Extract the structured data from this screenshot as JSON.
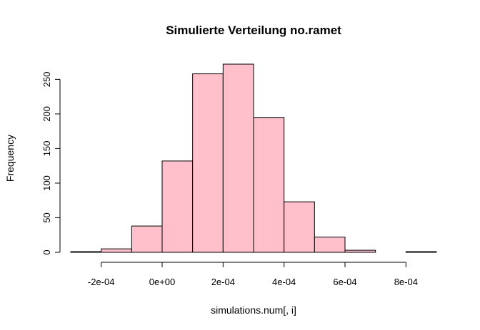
{
  "chart_data": {
    "type": "bar",
    "title": "Simulierte Verteilung no.ramet",
    "xlabel": "simulations.num[, i]",
    "ylabel": "Frequency",
    "bin_edges": [
      -0.0003,
      -0.0002,
      -0.0001,
      0,
      0.0001,
      0.0002,
      0.0003,
      0.0004,
      0.0005,
      0.0006,
      0.0007,
      0.0008,
      0.0009
    ],
    "values": [
      1,
      5,
      38,
      132,
      258,
      272,
      195,
      73,
      22,
      3,
      0,
      1
    ],
    "xlim": [
      -0.0003,
      0.0009
    ],
    "ylim": [
      0,
      272
    ],
    "x_ticks": [
      -0.0002,
      0,
      0.0002,
      0.0004,
      0.0006,
      0.0008
    ],
    "x_tick_labels": [
      "-2e-04",
      "0e+00",
      "2e-04",
      "4e-04",
      "6e-04",
      "8e-04"
    ],
    "y_ticks": [
      0,
      50,
      100,
      150,
      200,
      250
    ],
    "y_tick_labels": [
      "0",
      "50",
      "100",
      "150",
      "200",
      "250"
    ],
    "grid": false,
    "legend": "none",
    "bar_fill": "#ffc0cb",
    "bar_stroke": "#000000"
  }
}
